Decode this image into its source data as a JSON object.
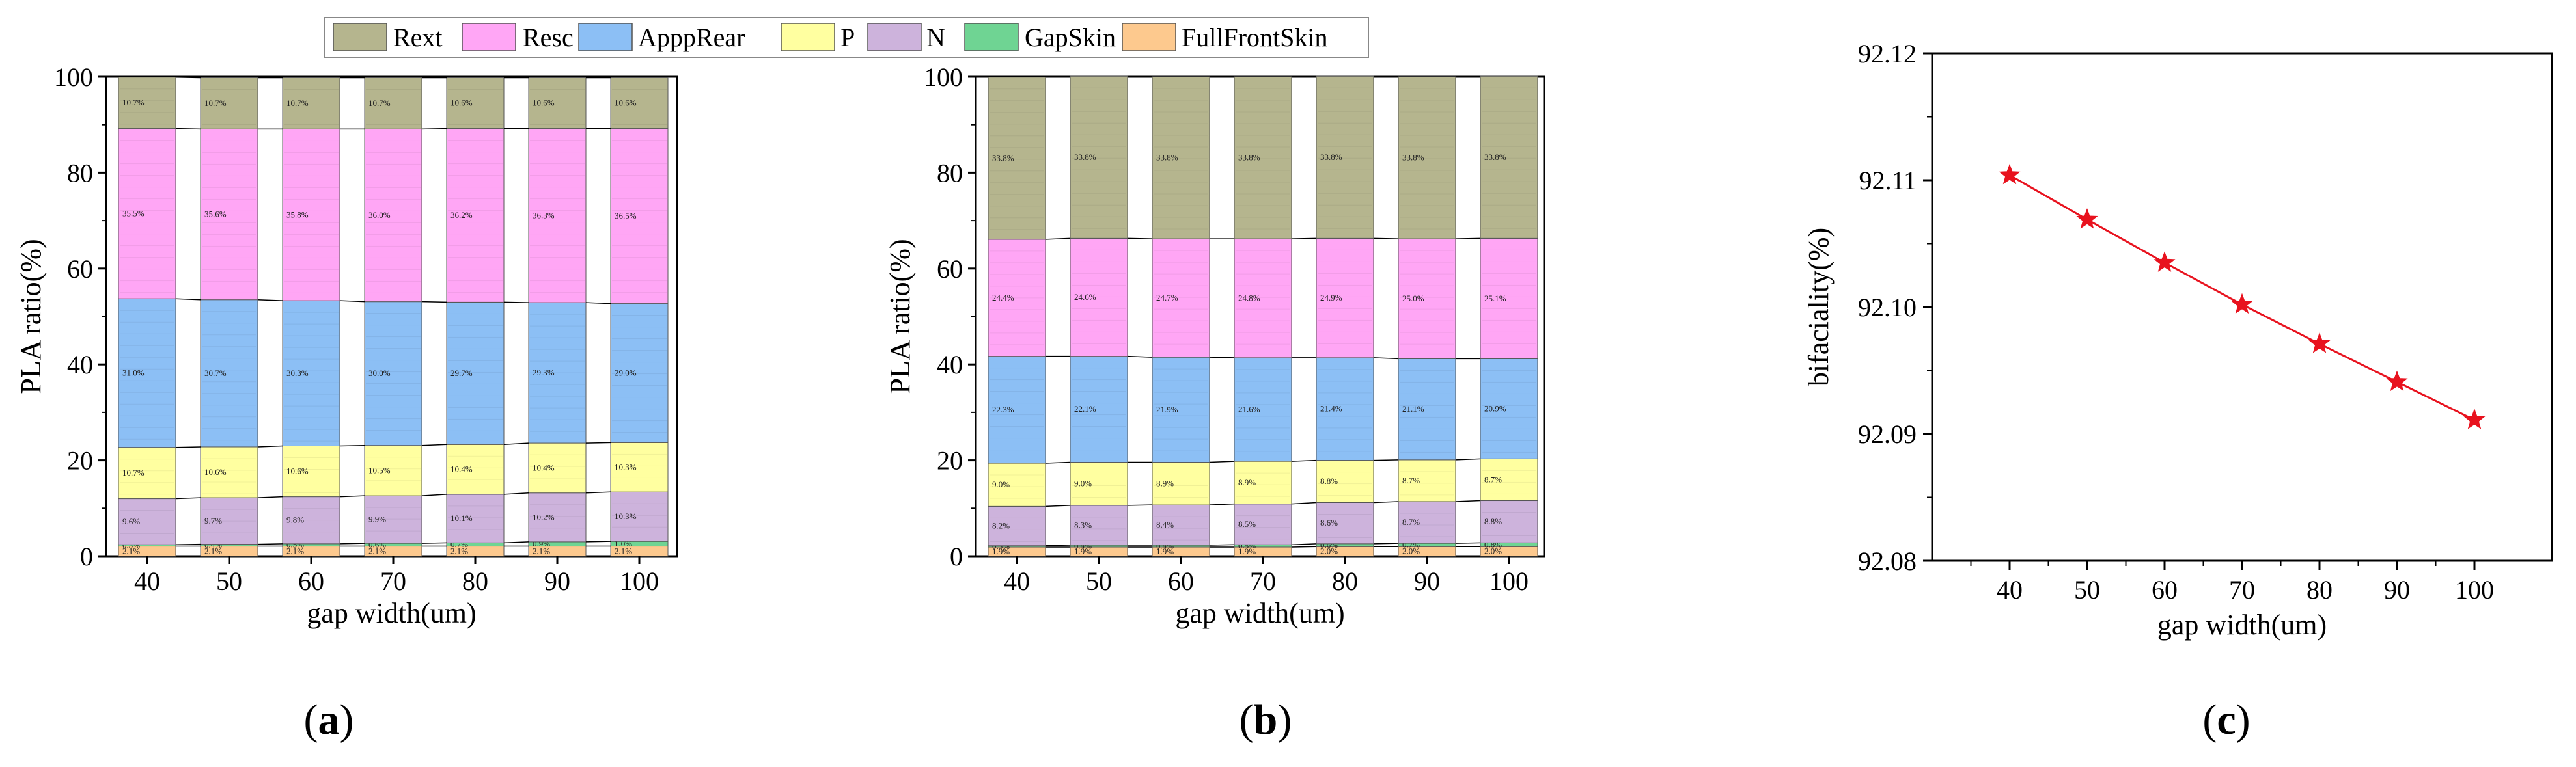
{
  "colors": {
    "Rext": "#B5B58E",
    "Resc": "#FFA6F5",
    "ApppRear": "#8CBFF5",
    "P": "#FFFFA0",
    "N": "#CDB3DC",
    "GapSkin": "#6FD493",
    "FullFrontSkin": "#FDC98E",
    "line": "#E8121E"
  },
  "legend": [
    "Rext",
    "Resc",
    "ApppRear",
    "P",
    "N",
    "GapSkin",
    "FullFrontSkin"
  ],
  "chart_data": [
    {
      "type": "bar",
      "stacked": true,
      "panel_label": "a",
      "title": "",
      "xlabel": "gap width(um)",
      "ylabel": "PLA ratio(%)",
      "ylim": [
        0,
        100
      ],
      "yticks": [
        "0",
        "20",
        "40",
        "60",
        "80",
        "100"
      ],
      "categories": [
        "40",
        "50",
        "60",
        "70",
        "80",
        "90",
        "100"
      ],
      "series": [
        {
          "name": "FullFrontSkin",
          "values": [
            2.1,
            2.1,
            2.1,
            2.1,
            2.1,
            2.1,
            2.1
          ],
          "labels": [
            "2.1%",
            "2.1%",
            "2.1%",
            "2.1%",
            "2.1%",
            "2.1%",
            "2.1%"
          ]
        },
        {
          "name": "GapSkin",
          "values": [
            0.3,
            0.4,
            0.5,
            0.6,
            0.7,
            0.9,
            1.0
          ],
          "labels": [
            "0.3%",
            "0.4%",
            "0.5%",
            "0.6%",
            "0.7%",
            "0.9%",
            "1.0%"
          ]
        },
        {
          "name": "N",
          "values": [
            9.6,
            9.7,
            9.8,
            9.9,
            10.1,
            10.2,
            10.3
          ],
          "labels": [
            "9.6%",
            "9.7%",
            "9.8%",
            "9.9%",
            "10.1%",
            "10.2%",
            "10.3%"
          ]
        },
        {
          "name": "P",
          "values": [
            10.7,
            10.6,
            10.6,
            10.5,
            10.4,
            10.4,
            10.3
          ],
          "labels": [
            "10.7%",
            "10.6%",
            "10.6%",
            "10.5%",
            "10.4%",
            "10.4%",
            "10.3%"
          ]
        },
        {
          "name": "ApppRear",
          "values": [
            31.0,
            30.7,
            30.3,
            30.0,
            29.7,
            29.3,
            29.0
          ],
          "labels": [
            "31.0%",
            "30.7%",
            "30.3%",
            "30.0%",
            "29.7%",
            "29.3%",
            "29.0%"
          ]
        },
        {
          "name": "Resc",
          "values": [
            35.5,
            35.6,
            35.8,
            36.0,
            36.2,
            36.3,
            36.5
          ],
          "labels": [
            "35.5%",
            "35.6%",
            "35.8%",
            "36.0%",
            "36.2%",
            "36.3%",
            "36.5%"
          ]
        },
        {
          "name": "Rext",
          "values": [
            10.7,
            10.7,
            10.7,
            10.7,
            10.6,
            10.6,
            10.6
          ],
          "labels": [
            "10.7%",
            "10.7%",
            "10.7%",
            "10.7%",
            "10.6%",
            "10.6%",
            "10.6%"
          ]
        }
      ]
    },
    {
      "type": "bar",
      "stacked": true,
      "panel_label": "b",
      "title": "",
      "xlabel": "gap width(um)",
      "ylabel": "PLA ratio(%)",
      "ylim": [
        0,
        100
      ],
      "yticks": [
        "0",
        "20",
        "40",
        "60",
        "80",
        "100"
      ],
      "categories": [
        "40",
        "50",
        "60",
        "70",
        "80",
        "90",
        "100"
      ],
      "series": [
        {
          "name": "FullFrontSkin",
          "values": [
            1.9,
            1.9,
            1.9,
            1.9,
            2.0,
            2.0,
            2.0
          ],
          "labels": [
            "1.9%",
            "1.9%",
            "1.9%",
            "1.9%",
            "2.0%",
            "2.0%",
            "2.0%"
          ]
        },
        {
          "name": "GapSkin",
          "values": [
            0.3,
            0.4,
            0.4,
            0.5,
            0.6,
            0.7,
            0.8
          ],
          "labels": [
            "0.3%",
            "0.4%",
            "0.4%",
            "0.5%",
            "0.6%",
            "0.7%",
            "0.8%"
          ]
        },
        {
          "name": "N",
          "values": [
            8.2,
            8.3,
            8.4,
            8.5,
            8.6,
            8.7,
            8.8
          ],
          "labels": [
            "8.2%",
            "8.3%",
            "8.4%",
            "8.5%",
            "8.6%",
            "8.7%",
            "8.8%"
          ]
        },
        {
          "name": "P",
          "values": [
            9.0,
            9.0,
            8.9,
            8.9,
            8.8,
            8.7,
            8.7
          ],
          "labels": [
            "9.0%",
            "9.0%",
            "8.9%",
            "8.9%",
            "8.8%",
            "8.7%",
            "8.7%"
          ]
        },
        {
          "name": "ApppRear",
          "values": [
            22.3,
            22.1,
            21.9,
            21.6,
            21.4,
            21.1,
            20.9
          ],
          "labels": [
            "22.3%",
            "22.1%",
            "21.9%",
            "21.6%",
            "21.4%",
            "21.1%",
            "20.9%"
          ]
        },
        {
          "name": "Resc",
          "values": [
            24.4,
            24.6,
            24.7,
            24.8,
            24.9,
            25.0,
            25.1
          ],
          "labels": [
            "24.4%",
            "24.6%",
            "24.7%",
            "24.8%",
            "24.9%",
            "25.0%",
            "25.1%"
          ]
        },
        {
          "name": "Rext",
          "values": [
            33.8,
            33.8,
            33.8,
            33.8,
            33.8,
            33.8,
            33.8
          ],
          "labels": [
            "33.8%",
            "33.8%",
            "33.8%",
            "33.8%",
            "33.8%",
            "33.8%",
            "33.8%"
          ]
        }
      ]
    },
    {
      "type": "line",
      "panel_label": "c",
      "title": "",
      "xlabel": "gap width(um)",
      "ylabel": "bifaciality(%)",
      "xlim": [
        30,
        110
      ],
      "ylim": [
        92.08,
        92.12
      ],
      "xticks": [
        "40",
        "50",
        "60",
        "70",
        "80",
        "90",
        "100"
      ],
      "yticks": [
        "92.08",
        "92.09",
        "92.10",
        "92.11",
        "92.12"
      ],
      "marker": "star",
      "series": [
        {
          "name": "bifaciality",
          "x": [
            40,
            50,
            60,
            70,
            80,
            90,
            100
          ],
          "y": [
            92.1104,
            92.1069,
            92.1035,
            92.1002,
            92.0971,
            92.0941,
            92.0911
          ]
        }
      ]
    }
  ]
}
